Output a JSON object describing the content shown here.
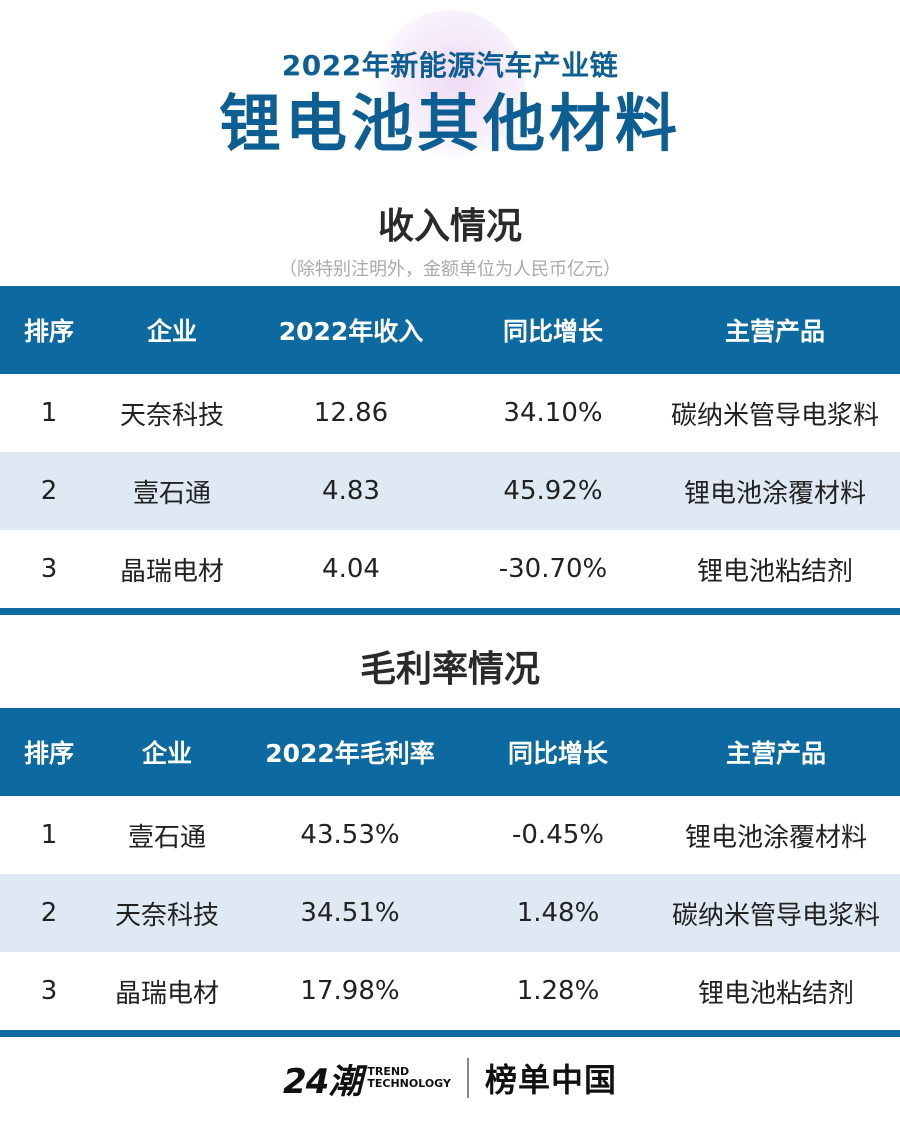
{
  "header": {
    "subtitle": "2022年新能源汽车产业链",
    "title": "锂电池其他材料"
  },
  "revenue": {
    "section_title": "收入情况",
    "note": "（除特别注明外，金额单位为人民币亿元）",
    "columns": [
      "排序",
      "企业",
      "2022年收入",
      "同比增长",
      "主营产品"
    ],
    "rows": [
      [
        "1",
        "天奈科技",
        "12.86",
        "34.10%",
        "碳纳米管导电浆料"
      ],
      [
        "2",
        "壹石通",
        "4.83",
        "45.92%",
        "锂电池涂覆材料"
      ],
      [
        "3",
        "晶瑞电材",
        "4.04",
        "-30.70%",
        "锂电池粘结剂"
      ]
    ]
  },
  "margin": {
    "section_title": "毛利率情况",
    "columns": [
      "排序",
      "企业",
      "2022年毛利率",
      "同比增长",
      "主营产品"
    ],
    "rows": [
      [
        "1",
        "壹石通",
        "43.53%",
        "-0.45%",
        "锂电池涂覆材料"
      ],
      [
        "2",
        "天奈科技",
        "34.51%",
        "1.48%",
        "碳纳米管导电浆料"
      ],
      [
        "3",
        "晶瑞电材",
        "17.98%",
        "1.28%",
        "锂电池粘结剂"
      ]
    ]
  },
  "footer": {
    "logo_24": "24潮",
    "logo_trend_line1": "TREND",
    "logo_trend_line2": "TECHNOLOGY",
    "logo_bd": "榜单中国"
  },
  "colors": {
    "accent": "#0d6aa1",
    "title": "#0d5f93",
    "negative": "#e3352b",
    "row_alt": "#dfe9f3"
  }
}
